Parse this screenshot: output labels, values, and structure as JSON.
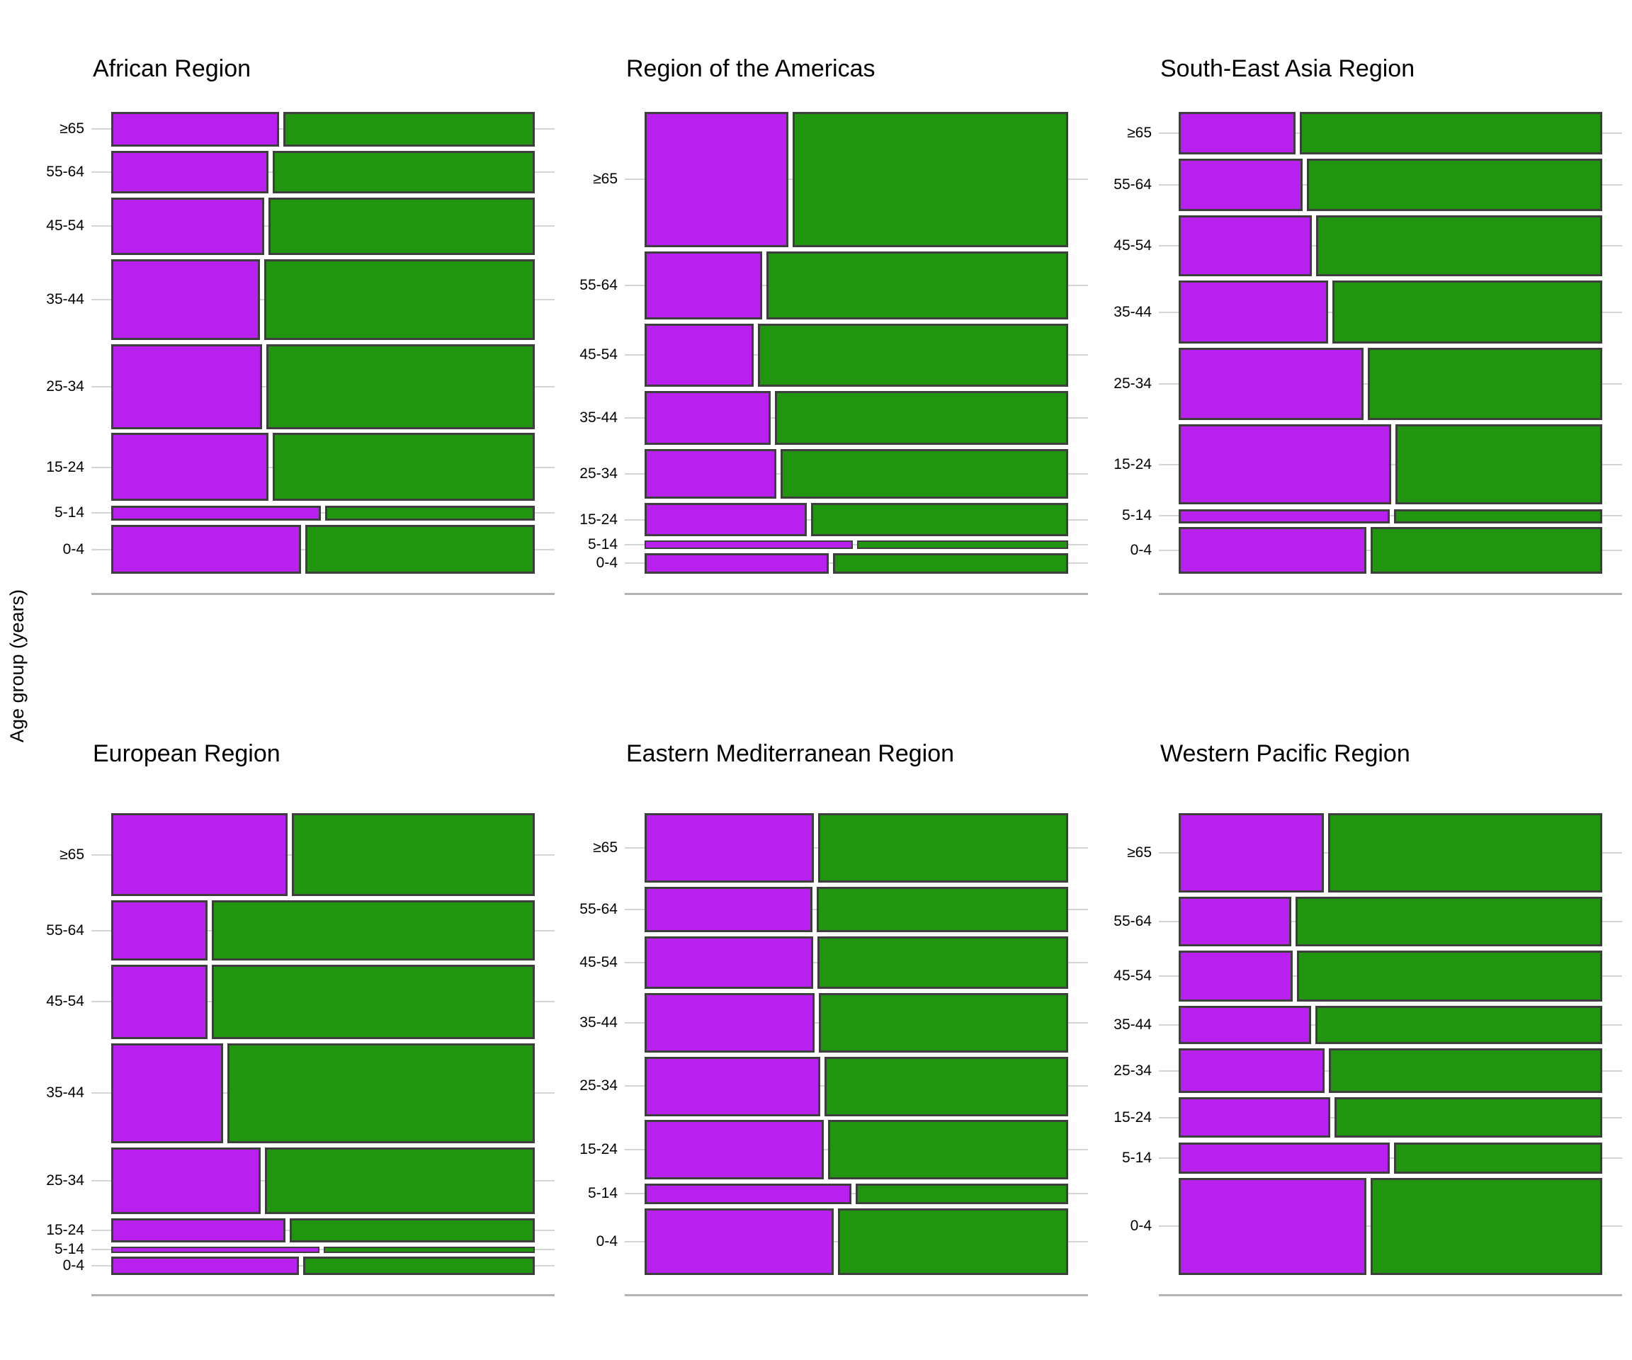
{
  "y_axis_title": "Age group (years)",
  "age_groups": [
    "≥65",
    "55-64",
    "45-54",
    "35-44",
    "25-34",
    "15-24",
    "5-14",
    "0-4"
  ],
  "colors": {
    "segment_purple": "#b821f0",
    "segment_green": "#219410",
    "bar_border": "#3e3e3e",
    "gridline": "#d4d4d4",
    "axis_line": "#b3b3b3",
    "text": "#000000",
    "background": "#ffffff"
  },
  "chart_data": [
    {
      "type": "bar",
      "variant": "mosaic",
      "title": "African Region",
      "categories": [
        "≥65",
        "55-64",
        "45-54",
        "35-44",
        "25-34",
        "15-24",
        "5-14",
        "0-4"
      ],
      "series": [
        {
          "name": "row_height_share_of_panel",
          "values": [
            0.08,
            0.099,
            0.132,
            0.187,
            0.196,
            0.158,
            0.035,
            0.113
          ]
        },
        {
          "name": "purple_segment_share_of_width",
          "values": [
            0.4,
            0.375,
            0.365,
            0.355,
            0.36,
            0.375,
            0.5,
            0.452
          ]
        }
      ],
      "legend": "none",
      "grid": "horizontal"
    },
    {
      "type": "bar",
      "variant": "mosaic",
      "title": "Region of the Americas",
      "categories": [
        "≥65",
        "55-64",
        "45-54",
        "35-44",
        "25-34",
        "15-24",
        "5-14",
        "0-4"
      ],
      "series": [
        {
          "name": "row_height_share_of_panel",
          "values": [
            0.313,
            0.157,
            0.146,
            0.125,
            0.115,
            0.077,
            0.019,
            0.048
          ]
        },
        {
          "name": "purple_segment_share_of_width",
          "values": [
            0.343,
            0.28,
            0.26,
            0.3,
            0.315,
            0.386,
            0.497,
            0.44
          ]
        }
      ],
      "legend": "none",
      "grid": "horizontal"
    },
    {
      "type": "bar",
      "variant": "mosaic",
      "title": "South-East Asia Region",
      "categories": [
        "≥65",
        "55-64",
        "45-54",
        "35-44",
        "25-34",
        "15-24",
        "5-14",
        "0-4"
      ],
      "series": [
        {
          "name": "row_height_share_of_panel",
          "values": [
            0.098,
            0.122,
            0.141,
            0.146,
            0.167,
            0.186,
            0.032,
            0.108
          ]
        },
        {
          "name": "purple_segment_share_of_width",
          "values": [
            0.279,
            0.295,
            0.317,
            0.357,
            0.441,
            0.507,
            0.503,
            0.448
          ]
        }
      ],
      "legend": "none",
      "grid": "horizontal"
    },
    {
      "type": "bar",
      "variant": "mosaic",
      "title": "European Region",
      "categories": [
        "≥65",
        "55-64",
        "45-54",
        "35-44",
        "25-34",
        "15-24",
        "5-14",
        "0-4"
      ],
      "series": [
        {
          "name": "row_height_share_of_panel",
          "values": [
            0.192,
            0.139,
            0.172,
            0.231,
            0.154,
            0.056,
            0.014,
            0.042
          ]
        },
        {
          "name": "purple_segment_share_of_width",
          "values": [
            0.42,
            0.23,
            0.23,
            0.267,
            0.356,
            0.416,
            0.496,
            0.448
          ]
        }
      ],
      "legend": "none",
      "grid": "horizontal"
    },
    {
      "type": "bar",
      "variant": "mosaic",
      "title": "Eastern Mediterranean Region",
      "categories": [
        "≥65",
        "55-64",
        "45-54",
        "35-44",
        "25-34",
        "15-24",
        "5-14",
        "0-4"
      ],
      "series": [
        {
          "name": "row_height_share_of_panel",
          "values": [
            0.161,
            0.105,
            0.121,
            0.137,
            0.137,
            0.137,
            0.048,
            0.154
          ]
        },
        {
          "name": "purple_segment_share_of_width",
          "values": [
            0.404,
            0.4,
            0.402,
            0.406,
            0.419,
            0.428,
            0.493,
            0.451
          ]
        }
      ],
      "legend": "none",
      "grid": "horizontal"
    },
    {
      "type": "bar",
      "variant": "mosaic",
      "title": "Western Pacific Region",
      "categories": [
        "≥65",
        "55-64",
        "45-54",
        "35-44",
        "25-34",
        "15-24",
        "5-14",
        "0-4"
      ],
      "series": [
        {
          "name": "row_height_share_of_panel",
          "values": [
            0.184,
            0.115,
            0.118,
            0.088,
            0.104,
            0.094,
            0.072,
            0.225
          ]
        },
        {
          "name": "purple_segment_share_of_width",
          "values": [
            0.346,
            0.268,
            0.272,
            0.316,
            0.348,
            0.362,
            0.504,
            0.448
          ]
        }
      ],
      "legend": "none",
      "grid": "horizontal"
    }
  ]
}
